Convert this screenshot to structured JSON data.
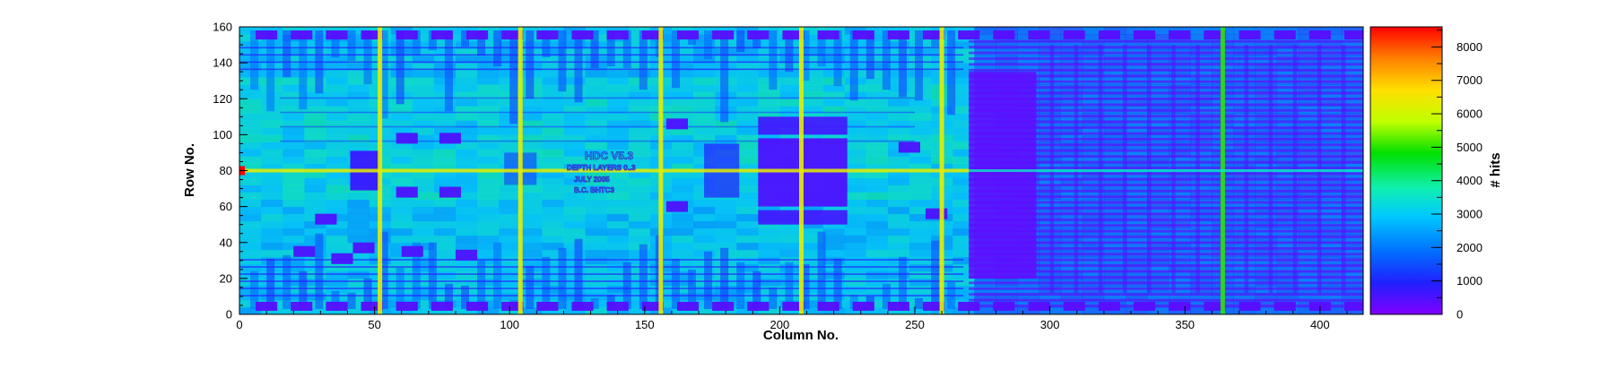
{
  "chart_data": {
    "type": "heatmap",
    "title": "",
    "xlabel": "Column No.",
    "ylabel": "Row No.",
    "zlabel": "# hits",
    "xlim": [
      0,
      416
    ],
    "ylim": [
      0,
      160
    ],
    "zlim": [
      0,
      8600
    ],
    "x_ticks": [
      "0",
      "50",
      "100",
      "150",
      "200",
      "250",
      "300",
      "350",
      "400"
    ],
    "x_tick_values": [
      0,
      50,
      100,
      150,
      200,
      250,
      300,
      350,
      400
    ],
    "y_ticks": [
      "0",
      "20",
      "40",
      "60",
      "80",
      "100",
      "120",
      "140",
      "160"
    ],
    "y_tick_values": [
      0,
      20,
      40,
      60,
      80,
      100,
      120,
      140,
      160
    ],
    "z_ticks": [
      "0",
      "1000",
      "2000",
      "3000",
      "4000",
      "5000",
      "6000",
      "7000",
      "8000"
    ],
    "z_tick_values": [
      0,
      1000,
      2000,
      3000,
      4000,
      5000,
      6000,
      7000,
      8000
    ],
    "grid": false,
    "colormap": [
      "#8000ff",
      "#2020ff",
      "#0070ff",
      "#00c8ff",
      "#10f0b0",
      "#00e000",
      "#c0ff00",
      "#ffe000",
      "#ff8000",
      "#ff0000"
    ],
    "background_level": 2900,
    "hot_columns": [
      52,
      104,
      156,
      208,
      260,
      364
    ],
    "hot_row": 80,
    "low_hit_region": {
      "columns": [
        270,
        416
      ],
      "rows": [
        0,
        160
      ],
      "level": 700
    },
    "chip_label": [
      "HDC V5.3",
      "DEPTH LAYERS 0..3",
      "JULY 2005",
      "B.C. BHTC3"
    ]
  }
}
